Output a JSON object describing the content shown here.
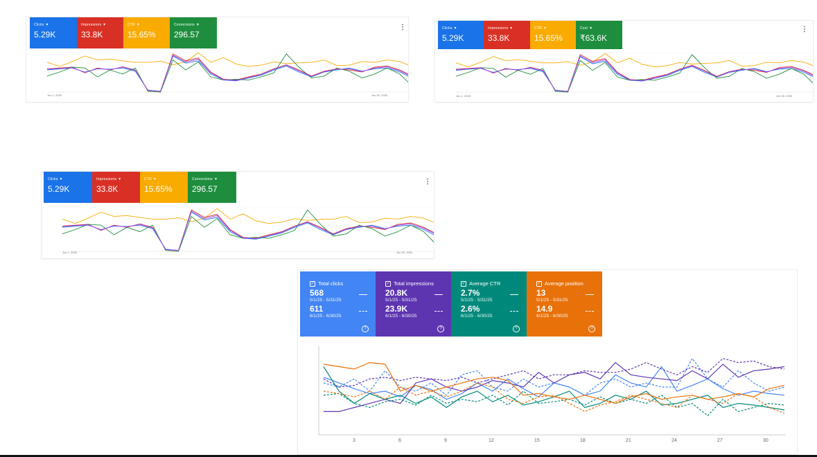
{
  "ads_cards": [
    {
      "id": "card-a",
      "tiles": [
        {
          "label": "Clicks",
          "value": "5.29K",
          "color": "#1a73e8"
        },
        {
          "label": "Impressions",
          "value": "33.8K",
          "color": "#d93025"
        },
        {
          "label": "CTR",
          "value": "15.65%",
          "color": "#f9ab00"
        },
        {
          "label": "Conversions",
          "value": "296.57",
          "color": "#1e8e3e"
        }
      ],
      "date_start": "Jun 1, 2025",
      "date_end": "Jun 30, 2025"
    },
    {
      "id": "card-b",
      "tiles": [
        {
          "label": "Clicks",
          "value": "5.29K",
          "color": "#1a73e8"
        },
        {
          "label": "Impressions",
          "value": "33.8K",
          "color": "#d93025"
        },
        {
          "label": "CTR",
          "value": "15.65%",
          "color": "#f9ab00"
        },
        {
          "label": "Cost",
          "value": "₹63.6K",
          "color": "#1e8e3e"
        }
      ],
      "date_start": "Jun 1, 2025",
      "date_end": "Jun 30, 2025"
    },
    {
      "id": "card-c",
      "tiles": [
        {
          "label": "Clicks",
          "value": "5.29K",
          "color": "#1a73e8"
        },
        {
          "label": "Impressions",
          "value": "33.8K",
          "color": "#d93025"
        },
        {
          "label": "CTR",
          "value": "15.65%",
          "color": "#f9ab00"
        },
        {
          "label": "Conversions",
          "value": "296.57",
          "color": "#1e8e3e"
        }
      ],
      "date_start": "Jun 1, 2025",
      "date_end": "Jun 30, 2025"
    }
  ],
  "ads_series_colors": {
    "ctr": "#f9ab00",
    "clicks": "#1a73e8",
    "impressions": "#d93025",
    "conversions": "#1e8e3e",
    "extra": "#a142f4"
  },
  "search_console": {
    "tiles": [
      {
        "title": "Total clicks",
        "current": "568",
        "current_range": "5/1/25 - 5/31/25",
        "previous": "611",
        "previous_range": "6/1/25 - 6/30/25",
        "color": "#4285f4"
      },
      {
        "title": "Total impressions",
        "current": "20.8K",
        "current_range": "5/1/25 - 5/31/25",
        "previous": "23.9K",
        "previous_range": "6/1/25 - 6/30/25",
        "color": "#5e35b1"
      },
      {
        "title": "Average CTR",
        "current": "2.7%",
        "current_range": "5/1/25 - 5/31/25",
        "previous": "2.6%",
        "previous_range": "6/1/25 - 6/30/25",
        "color": "#00897b"
      },
      {
        "title": "Average position",
        "current": "13",
        "current_range": "5/1/25 - 5/31/25",
        "previous": "14.9",
        "previous_range": "6/1/25 - 6/30/25",
        "color": "#e8710a"
      }
    ],
    "x_ticks": [
      "3",
      "6",
      "9",
      "12",
      "15",
      "18",
      "21",
      "24",
      "27",
      "30"
    ]
  },
  "chart_data": [
    {
      "type": "line",
      "title": "",
      "x": [
        1,
        2,
        3,
        4,
        5,
        6,
        7,
        8,
        9,
        10,
        11,
        12,
        13,
        14,
        15,
        16,
        17,
        18,
        19,
        20,
        21,
        22,
        23,
        24,
        25,
        26,
        27,
        28,
        29,
        30
      ],
      "x_start_label": "Jun 1, 2025",
      "x_end_label": "Jun 30, 2025",
      "series": [
        {
          "name": "CTR",
          "values": [
            0.74,
            0.64,
            0.76,
            0.9,
            0.8,
            0.82,
            0.78,
            0.74,
            0.74,
            0.77,
            0.68,
            0.76,
            0.98,
            0.74,
            0.86,
            0.7,
            0.64,
            0.67,
            0.75,
            0.71,
            0.73,
            0.74,
            0.8,
            0.66,
            0.67,
            0.76,
            0.74,
            0.8,
            0.76,
            0.64
          ]
        },
        {
          "name": "Clicks",
          "values": [
            0.55,
            0.58,
            0.6,
            0.5,
            0.58,
            0.57,
            0.6,
            0.52,
            0.05,
            0.02,
            0.9,
            0.72,
            0.78,
            0.45,
            0.3,
            0.28,
            0.35,
            0.42,
            0.55,
            0.65,
            0.5,
            0.38,
            0.5,
            0.55,
            0.6,
            0.52,
            0.58,
            0.6,
            0.5,
            0.35
          ]
        },
        {
          "name": "Impressions",
          "values": [
            0.58,
            0.6,
            0.62,
            0.48,
            0.6,
            0.55,
            0.63,
            0.55,
            0.04,
            0.02,
            0.95,
            0.78,
            0.85,
            0.5,
            0.32,
            0.3,
            0.38,
            0.45,
            0.58,
            0.68,
            0.55,
            0.4,
            0.52,
            0.58,
            0.55,
            0.5,
            0.62,
            0.65,
            0.55,
            0.4
          ]
        },
        {
          "name": "Conversions",
          "values": [
            0.4,
            0.5,
            0.62,
            0.6,
            0.38,
            0.55,
            0.45,
            0.6,
            0.02,
            0.0,
            0.8,
            0.55,
            0.75,
            0.38,
            0.3,
            0.32,
            0.3,
            0.38,
            0.48,
            0.95,
            0.62,
            0.35,
            0.4,
            0.6,
            0.52,
            0.35,
            0.45,
            0.6,
            0.45,
            0.15
          ]
        },
        {
          "name": "",
          "values": [
            0.57,
            0.59,
            0.61,
            0.49,
            0.59,
            0.56,
            0.62,
            0.54,
            0.04,
            0.02,
            0.92,
            0.75,
            0.82,
            0.48,
            0.31,
            0.29,
            0.36,
            0.44,
            0.57,
            0.67,
            0.53,
            0.39,
            0.51,
            0.57,
            0.58,
            0.51,
            0.6,
            0.63,
            0.53,
            0.38
          ]
        }
      ]
    },
    {
      "type": "line",
      "title": "",
      "x": [
        1,
        2,
        3,
        4,
        5,
        6,
        7,
        8,
        9,
        10,
        11,
        12,
        13,
        14,
        15,
        16,
        17,
        18,
        19,
        20,
        21,
        22,
        23,
        24,
        25,
        26,
        27,
        28,
        29,
        30,
        31
      ],
      "x_ticks": [
        "3",
        "6",
        "9",
        "12",
        "15",
        "18",
        "21",
        "24",
        "27",
        "30"
      ],
      "series": [
        {
          "name": "Total clicks",
          "values": [
            0.62,
            0.55,
            0.48,
            0.42,
            0.45,
            0.38,
            0.52,
            0.47,
            0.35,
            0.42,
            0.55,
            0.45,
            0.6,
            0.48,
            0.38,
            0.55,
            0.5,
            0.4,
            0.45,
            0.65,
            0.55,
            0.5,
            0.75,
            0.45,
            0.52,
            0.6,
            0.48,
            0.4,
            0.45,
            0.42,
            0.4
          ]
        },
        {
          "name": "",
          "values": [
            0.55,
            0.5,
            0.6,
            0.45,
            0.7,
            0.5,
            0.45,
            0.55,
            0.4,
            0.65,
            0.7,
            0.5,
            0.45,
            0.6,
            0.5,
            0.55,
            0.5,
            0.4,
            0.55,
            0.6,
            0.5,
            0.55,
            0.5,
            0.5,
            0.85,
            0.6,
            0.5,
            0.7,
            0.55,
            0.45,
            0.5
          ]
        },
        {
          "name": "Total impressions",
          "values": [
            0.2,
            0.2,
            0.25,
            0.3,
            0.35,
            0.3,
            0.55,
            0.6,
            0.5,
            0.45,
            0.5,
            0.58,
            0.55,
            0.5,
            0.68,
            0.55,
            0.65,
            0.68,
            0.6,
            0.8,
            0.65,
            0.62,
            0.6,
            0.58,
            0.7,
            0.6,
            0.78,
            0.62,
            0.7,
            0.72,
            0.75
          ]
        },
        {
          "name": "",
          "values": [
            0.6,
            0.5,
            0.52,
            0.6,
            0.62,
            0.58,
            0.62,
            0.6,
            0.58,
            0.62,
            0.55,
            0.6,
            0.65,
            0.7,
            0.6,
            0.65,
            0.65,
            0.7,
            0.68,
            0.68,
            0.72,
            0.8,
            0.72,
            0.65,
            0.75,
            0.68,
            0.85,
            0.8,
            0.82,
            0.75,
            0.72
          ]
        },
        {
          "name": "Average CTR",
          "values": [
            0.75,
            0.45,
            0.3,
            0.42,
            0.35,
            0.4,
            0.3,
            0.38,
            0.25,
            0.38,
            0.45,
            0.32,
            0.4,
            0.28,
            0.32,
            0.38,
            0.45,
            0.25,
            0.3,
            0.4,
            0.35,
            0.45,
            0.28,
            0.3,
            0.35,
            0.4,
            0.25,
            0.3,
            0.28,
            0.25,
            0.22
          ]
        },
        {
          "name": "",
          "values": [
            0.4,
            0.42,
            0.3,
            0.25,
            0.32,
            0.35,
            0.28,
            0.4,
            0.3,
            0.35,
            0.32,
            0.4,
            0.28,
            0.45,
            0.3,
            0.32,
            0.35,
            0.28,
            0.38,
            0.3,
            0.35,
            0.3,
            0.4,
            0.25,
            0.3,
            0.15,
            0.35,
            0.2,
            0.25,
            0.3,
            0.28
          ]
        },
        {
          "name": "Average position",
          "values": [
            0.78,
            0.75,
            0.72,
            0.8,
            0.78,
            0.45,
            0.52,
            0.45,
            0.5,
            0.55,
            0.6,
            0.62,
            0.58,
            0.4,
            0.42,
            0.38,
            0.35,
            0.4,
            0.35,
            0.3,
            0.38,
            0.42,
            0.35,
            0.38,
            0.4,
            0.35,
            0.38,
            0.42,
            0.38,
            0.48,
            0.52
          ]
        },
        {
          "name": "",
          "values": [
            0.45,
            0.42,
            0.38,
            0.45,
            0.35,
            0.5,
            0.4,
            0.45,
            0.38,
            0.45,
            0.55,
            0.5,
            0.35,
            0.3,
            0.38,
            0.4,
            0.3,
            0.2,
            0.28,
            0.32,
            0.4,
            0.35,
            0.3,
            0.25,
            0.4,
            0.35,
            0.3,
            0.42,
            0.38,
            0.25,
            0.18
          ]
        }
      ]
    }
  ]
}
